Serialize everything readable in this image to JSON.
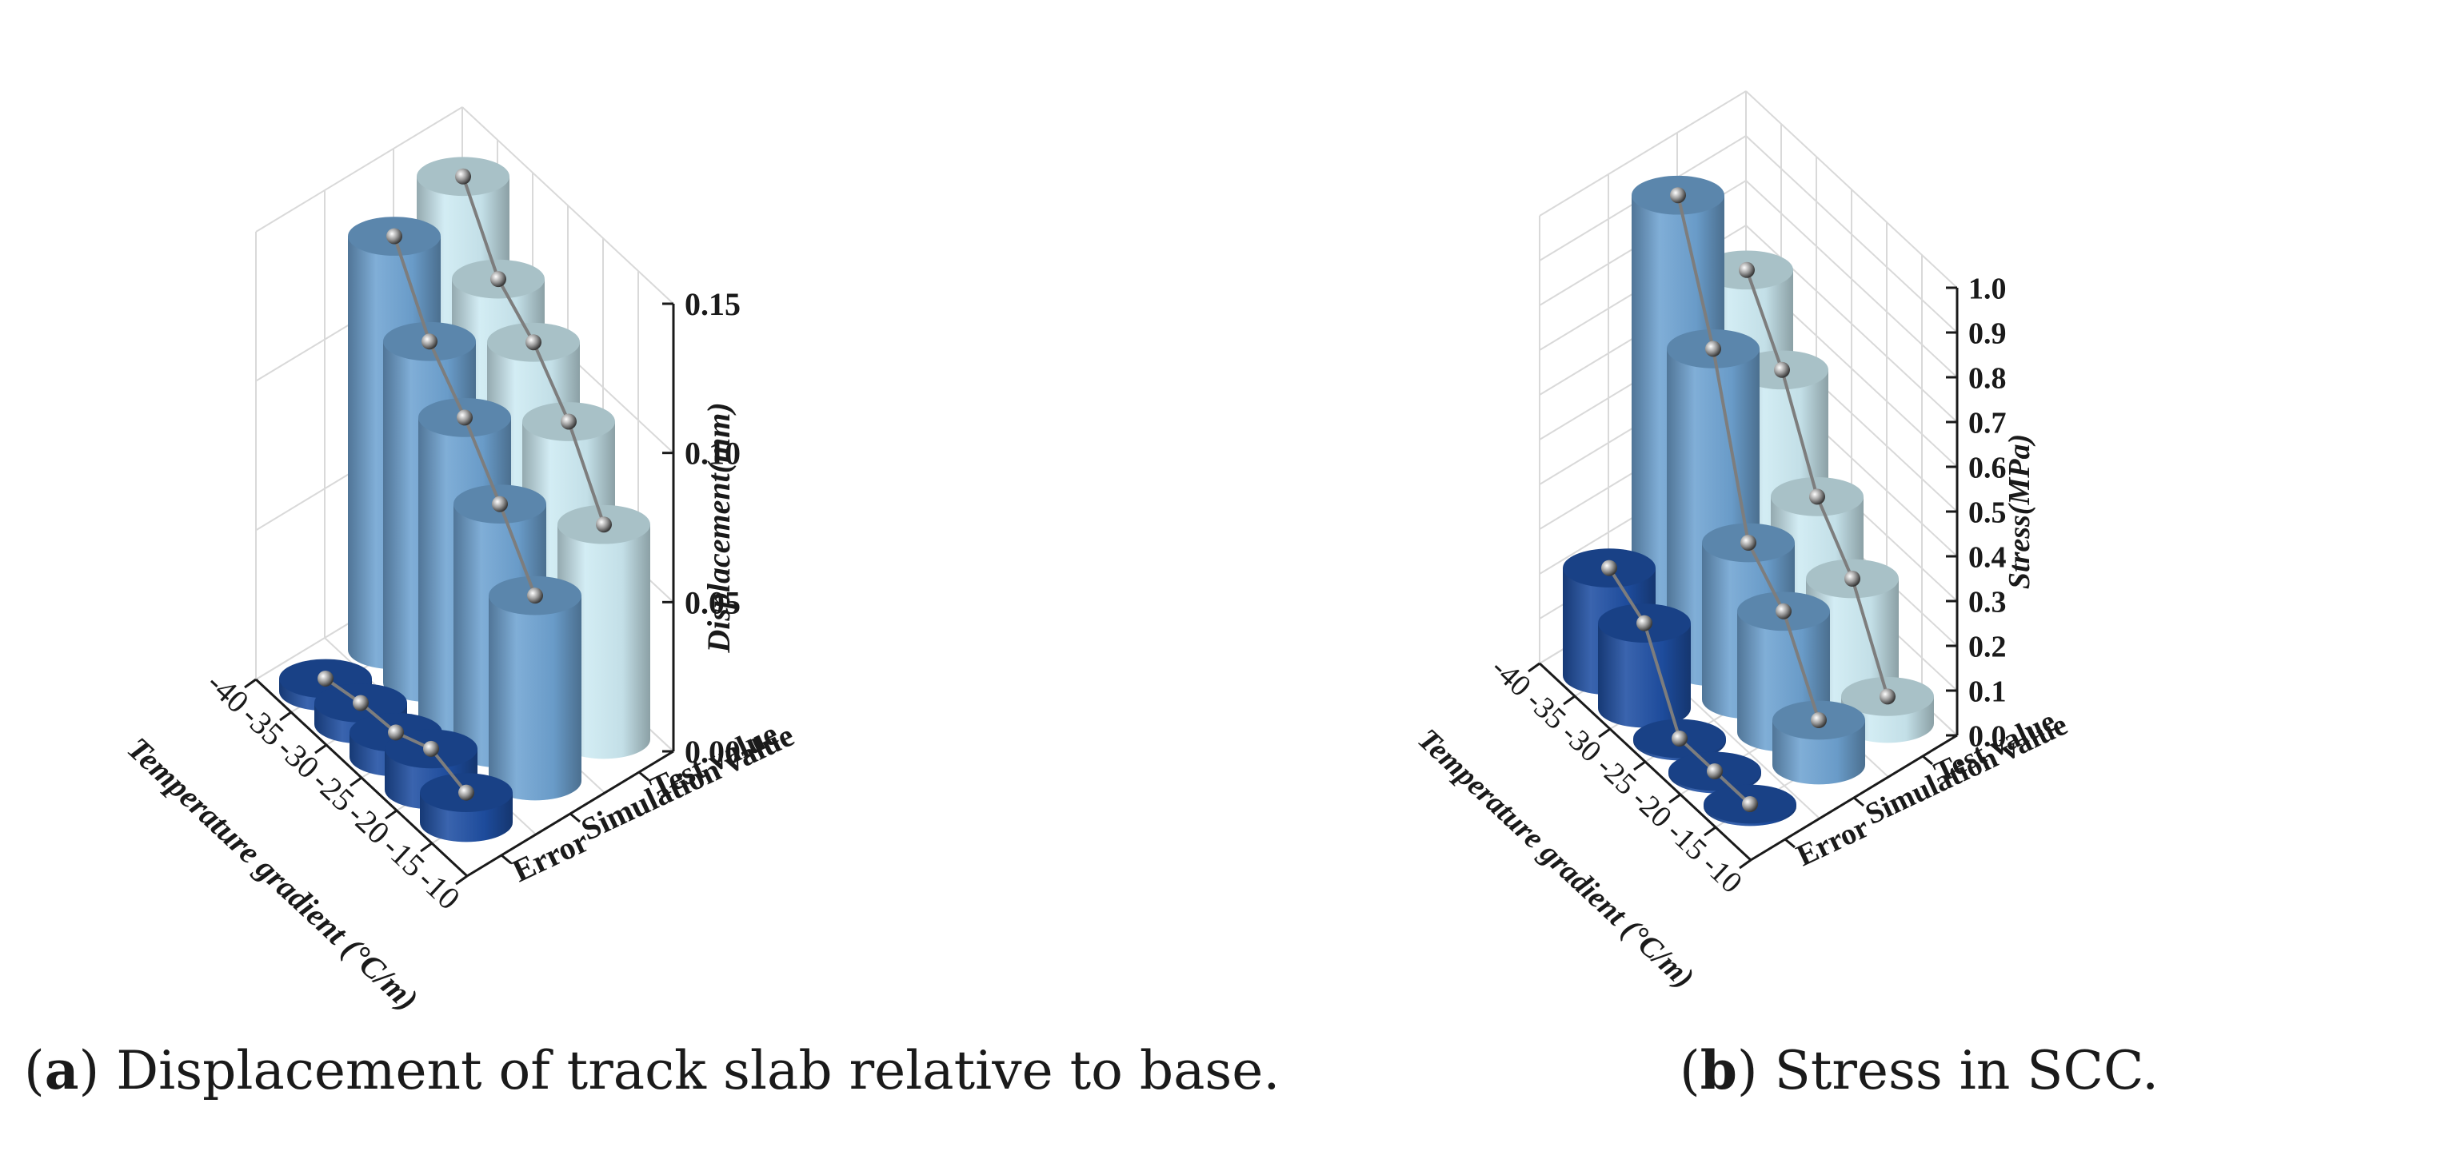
{
  "chart_data": [
    {
      "type": "3d-bar",
      "panel": "a",
      "caption_letter": "a",
      "caption_text": "Displacement of track slab relative to base.",
      "xlabel": "Temperature gradient (°C/m)",
      "ylabel": "Displacement(mm)",
      "x_tick_labels": [
        "-40",
        "-35",
        "-30",
        "-25",
        "-20",
        "-15",
        "-10"
      ],
      "categories": [
        -35,
        -30,
        -25,
        -20,
        -15
      ],
      "series_axis_labels": [
        "Error",
        "Simulation value",
        "Test value"
      ],
      "z_ticks": [
        "0.00",
        "0.05",
        "0.10",
        "0.15"
      ],
      "zlim": [
        0,
        0.15
      ],
      "series": [
        {
          "name": "Error",
          "color": "#1f4fa3",
          "values": [
            0.0043,
            0.0071,
            0.0082,
            0.0137,
            0.01
          ]
        },
        {
          "name": "Simulation value",
          "color": "#6fa3d2",
          "values": [
            0.1386,
            0.1143,
            0.0998,
            0.0818,
            0.0621
          ]
        },
        {
          "name": "Test value",
          "color": "#cdebf3",
          "values": [
            0.1447,
            0.1213,
            0.1111,
            0.0955,
            0.072
          ]
        }
      ]
    },
    {
      "type": "3d-bar",
      "panel": "b",
      "caption_letter": "b",
      "caption_text": "Stress in SCC.",
      "xlabel": "Temperature gradient (°C/m)",
      "ylabel": "Stress(MPa)",
      "x_tick_labels": [
        "-40",
        "-35",
        "-30",
        "-25",
        "-20",
        "-15",
        "-10"
      ],
      "categories": [
        -35,
        -30,
        -25,
        -20,
        -15
      ],
      "series_axis_labels": [
        "Error",
        "Simulation value",
        "Test value"
      ],
      "z_ticks": [
        "0.0",
        "0.1",
        "0.2",
        "0.3",
        "0.4",
        "0.5",
        "0.6",
        "0.7",
        "0.8",
        "0.9",
        "1.0"
      ],
      "zlim": [
        0,
        1.0
      ],
      "series": [
        {
          "name": "Error",
          "color": "#1f4fa3",
          "values": [
            0.24,
            0.19,
            0.0,
            0.0,
            0.0
          ]
        },
        {
          "name": "Simulation value",
          "color": "#6fa3d2",
          "values": [
            0.98,
            0.71,
            0.35,
            0.27,
            0.1
          ]
        },
        {
          "name": "Test value",
          "color": "#cdebf3",
          "values": [
            0.72,
            0.57,
            0.36,
            0.25,
            0.06
          ]
        }
      ]
    }
  ]
}
